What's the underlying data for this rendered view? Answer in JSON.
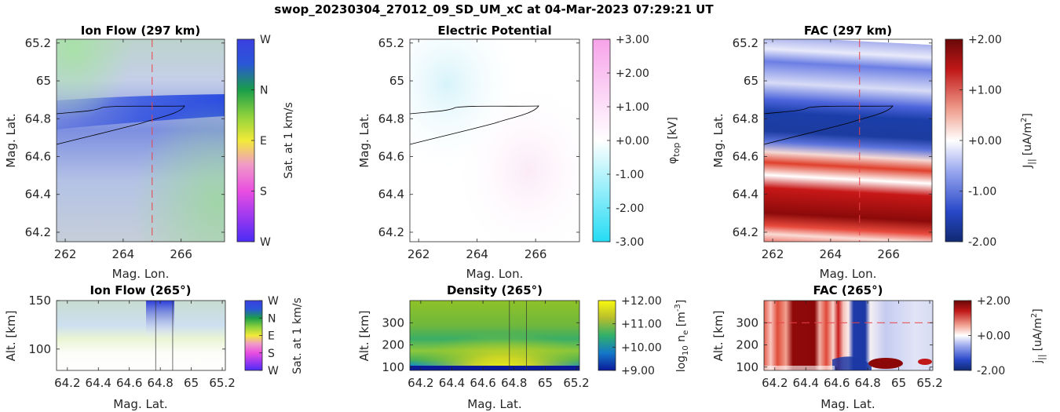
{
  "figure_title": "swop_20230304_27012_09_SD_UM_xC at 04-Mar-2023 07:29:21 UT",
  "colors": {
    "axis": "#262626",
    "cut_line": "#e8434a",
    "contour": "#000000"
  },
  "chart_data": [
    {
      "id": "ion-flow-map",
      "type": "heatmap",
      "title": "Ion Flow (297 km)",
      "xlabel": "Mag. Lon.",
      "ylabel": "Mag. Lat.",
      "xlim": [
        261.7,
        267.5
      ],
      "ylim": [
        64.15,
        65.22
      ],
      "xticks": [
        262,
        264,
        266
      ],
      "xticklabels": [
        "262",
        "264",
        "266"
      ],
      "yticks": [
        64.2,
        64.4,
        64.6,
        64.8,
        65,
        65.2
      ],
      "yticklabels": [
        "64.2",
        "64.4",
        "64.6",
        "64.8",
        "65",
        "65.2"
      ],
      "vline_x": 265,
      "colorbar": {
        "label": "Sat. at 1 km/s",
        "ticklabels": [
          "W",
          "N",
          "E",
          "S",
          "W"
        ],
        "colormap": "hsv-direction"
      },
      "grid": false
    },
    {
      "id": "electric-potential-map",
      "type": "heatmap",
      "title": "Electric Potential",
      "xlabel": "Mag. Lon.",
      "ylabel": "Mag. Lat.",
      "xlim": [
        261.7,
        267.5
      ],
      "ylim": [
        64.15,
        65.22
      ],
      "xticks": [
        262,
        264,
        266
      ],
      "xticklabels": [
        "262",
        "264",
        "266"
      ],
      "yticks": [
        64.2,
        64.4,
        64.6,
        64.8,
        65,
        65.2
      ],
      "yticklabels": [
        "64.2",
        "64.4",
        "64.6",
        "64.8",
        "65",
        "65.2"
      ],
      "colorbar": {
        "label_main": "φ",
        "label_sub": "top",
        "label_unit": "[kV]",
        "ticklabels": [
          "+3.00",
          "+2.00",
          "+1.00",
          "+0.00",
          "-1.00",
          "-2.00",
          "-3.00"
        ],
        "range": [
          -3,
          3
        ],
        "colormap": "cyan-white-magenta"
      },
      "grid": false
    },
    {
      "id": "fac-map",
      "type": "heatmap",
      "title": "FAC (297 km)",
      "xlabel": "Mag. Lon.",
      "ylabel": "Mag. Lat.",
      "xlim": [
        261.7,
        267.5
      ],
      "ylim": [
        64.15,
        65.22
      ],
      "xticks": [
        262,
        264,
        266
      ],
      "xticklabels": [
        "262",
        "264",
        "266"
      ],
      "yticks": [
        64.2,
        64.4,
        64.6,
        64.8,
        65,
        65.2
      ],
      "yticklabels": [
        "64.2",
        "64.4",
        "64.6",
        "64.8",
        "65",
        "65.2"
      ],
      "vline_x": 265,
      "colorbar": {
        "label_main": "J",
        "label_sub": "||",
        "label_unit": "[uA/m",
        "label_sup": "2",
        "label_end": "]",
        "ticklabels": [
          "+2.00",
          "+1.00",
          "+0.00",
          "-1.00",
          "-2.00"
        ],
        "range": [
          -2,
          2
        ],
        "colormap": "blue-white-red"
      },
      "grid": false
    },
    {
      "id": "ion-flow-alt",
      "type": "heatmap",
      "title": "Ion Flow (265°)",
      "xlabel": "Mag. Lat.",
      "ylabel": "Alt. [km]",
      "xlim": [
        64.13,
        65.22
      ],
      "ylim": [
        78,
        150
      ],
      "xticks": [
        64.2,
        64.4,
        64.6,
        64.8,
        65,
        65.2
      ],
      "xticklabels": [
        "64.2",
        "64.4",
        "64.6",
        "64.8",
        "65",
        "65.2"
      ],
      "yticks": [
        100,
        150
      ],
      "yticklabels": [
        "100",
        "150"
      ],
      "vlines_x": [
        64.77,
        64.88
      ],
      "colorbar": {
        "label": "Sat. at 1 km/s",
        "ticklabels": [
          "W",
          "N",
          "E",
          "S",
          "W"
        ],
        "colormap": "hsv-direction"
      }
    },
    {
      "id": "density-alt",
      "type": "heatmap",
      "title": "Density (265°)",
      "xlabel": "Mag. Lat.",
      "ylabel": "Alt. [km]",
      "xlim": [
        64.13,
        65.22
      ],
      "ylim": [
        85,
        400
      ],
      "xticks": [
        64.2,
        64.4,
        64.6,
        64.8,
        65,
        65.2
      ],
      "xticklabels": [
        "64.2",
        "64.4",
        "64.6",
        "64.8",
        "65",
        "65.2"
      ],
      "yticks": [
        100,
        200,
        300
      ],
      "yticklabels": [
        "100",
        "200",
        "300"
      ],
      "vlines_x": [
        64.77,
        64.88
      ],
      "colorbar": {
        "label_log": "log",
        "label_logsub": "10",
        "label_var": " n",
        "label_varsub": "e",
        "label_unit": " [m",
        "label_sup": "-3",
        "label_end": "]",
        "ticklabels": [
          "+12.00",
          "+11.00",
          "+10.00",
          "+9.00"
        ],
        "range": [
          9,
          12
        ],
        "colormap": "parula"
      }
    },
    {
      "id": "fac-alt",
      "type": "heatmap",
      "title": "FAC (265°)",
      "xlabel": "Mag. Lat.",
      "ylabel": "Alt. [km]",
      "xlim": [
        64.13,
        65.22
      ],
      "ylim": [
        85,
        400
      ],
      "xticks": [
        64.2,
        64.4,
        64.6,
        64.8,
        65,
        65.2
      ],
      "xticklabels": [
        "64.2",
        "64.4",
        "64.6",
        "64.8",
        "65",
        "65.2"
      ],
      "yticks": [
        100,
        200,
        300
      ],
      "yticklabels": [
        "100",
        "200",
        "300"
      ],
      "hline_y": 300,
      "colorbar": {
        "label_main": "j",
        "label_sub": "||",
        "label_unit": "[uA/m",
        "label_sup": "2",
        "label_end": "]",
        "ticklabels": [
          "+2.00",
          "+0.00",
          "-2.00"
        ],
        "range": [
          -2,
          2
        ],
        "colormap": "blue-white-red"
      }
    }
  ]
}
